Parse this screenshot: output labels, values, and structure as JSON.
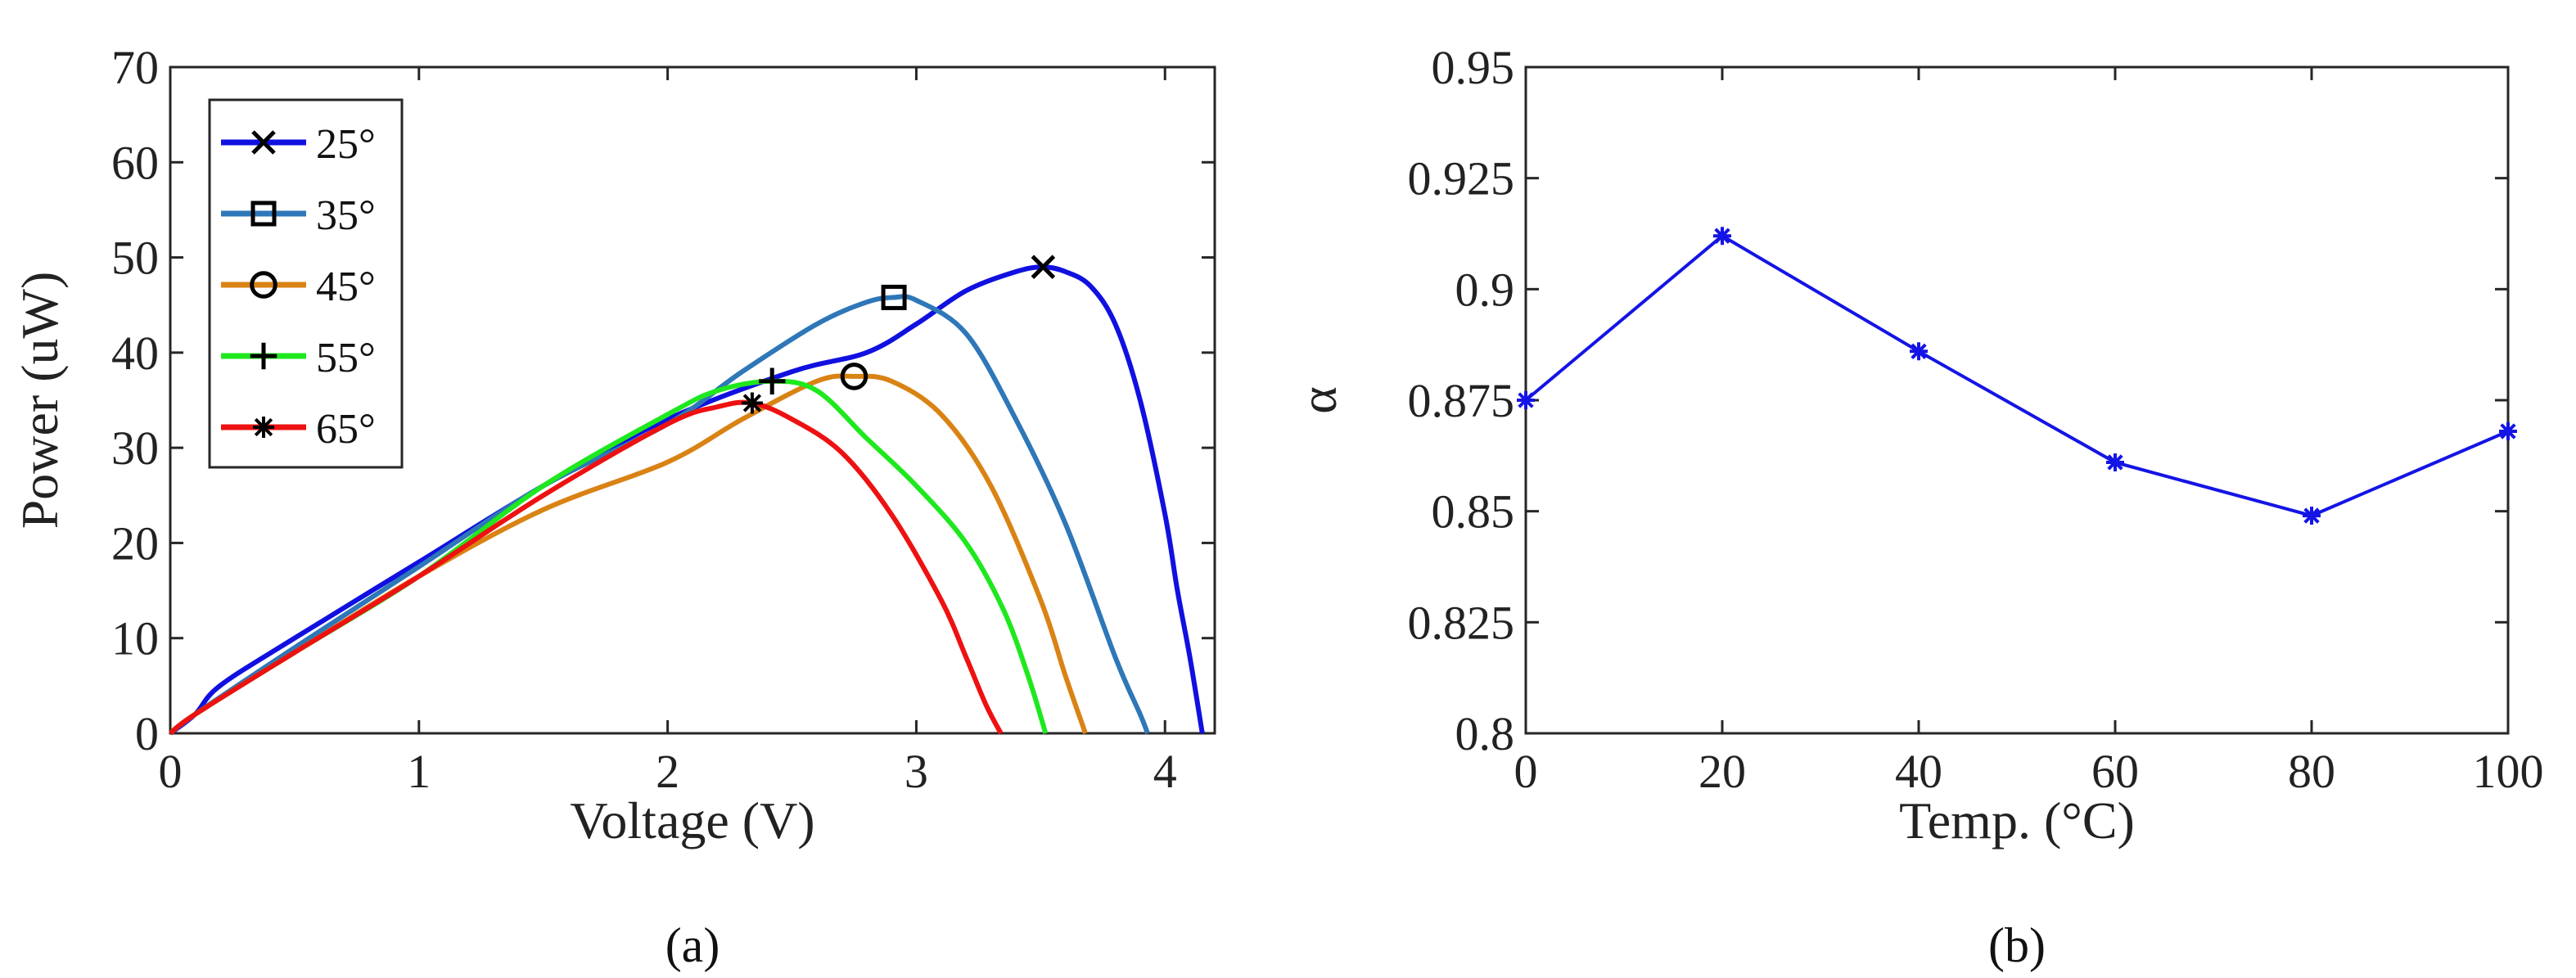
{
  "chart_data": [
    {
      "type": "line",
      "caption": "(a)",
      "xlabel": "Voltage (V)",
      "ylabel": "Power (uW)",
      "xlim": [
        0,
        4.2
      ],
      "ylim": [
        0,
        70
      ],
      "xticks": [
        0,
        1,
        2,
        3,
        4
      ],
      "yticks": [
        0,
        10,
        20,
        30,
        40,
        50,
        60,
        70
      ],
      "grid": false,
      "legend_position": "top-left",
      "series": [
        {
          "name": "25°",
          "color": "#1010e0",
          "marker": "x",
          "mpp": [
            3.51,
            49
          ],
          "x": [
            0,
            0.1,
            0.2,
            0.5,
            1.0,
            1.5,
            2.0,
            2.5,
            2.8,
            3.0,
            3.2,
            3.4,
            3.51,
            3.6,
            3.7,
            3.8,
            3.9,
            4.0,
            4.05,
            4.1,
            4.15
          ],
          "y": [
            0,
            2,
            5,
            10,
            18,
            26,
            33,
            38,
            40,
            43,
            46.5,
            48.5,
            49,
            48.5,
            47,
            43,
            35,
            23,
            15,
            8,
            0
          ]
        },
        {
          "name": "35°",
          "color": "#2e77b8",
          "marker": "square",
          "mpp": [
            2.91,
            45.8
          ],
          "x": [
            0,
            0.1,
            0.5,
            1.0,
            1.5,
            2.0,
            2.3,
            2.6,
            2.8,
            2.91,
            3.0,
            3.2,
            3.4,
            3.6,
            3.8,
            3.9,
            3.93
          ],
          "y": [
            0,
            2,
            9,
            17.5,
            26,
            32.5,
            38,
            43,
            45.3,
            45.8,
            45.5,
            42,
            33,
            22,
            8,
            2,
            0
          ]
        },
        {
          "name": "45°",
          "color": "#d98314",
          "marker": "circle",
          "mpp": [
            2.75,
            37.5
          ],
          "x": [
            0,
            0.1,
            0.5,
            1.0,
            1.5,
            2.0,
            2.3,
            2.6,
            2.75,
            2.9,
            3.1,
            3.3,
            3.5,
            3.6,
            3.68
          ],
          "y": [
            0,
            2,
            8.5,
            16.5,
            23.5,
            28.5,
            33,
            37,
            37.5,
            37,
            33.5,
            26,
            14,
            6,
            0
          ]
        },
        {
          "name": "55°",
          "color": "#1ee81e",
          "marker": "plus",
          "mpp": [
            2.42,
            37
          ],
          "x": [
            0,
            0.1,
            0.5,
            1.0,
            1.5,
            2.0,
            2.2,
            2.42,
            2.6,
            2.8,
            3.0,
            3.2,
            3.35,
            3.45,
            3.52
          ],
          "y": [
            0,
            2,
            8.5,
            16.5,
            26,
            33.5,
            36,
            37,
            36,
            31,
            26,
            20,
            13,
            6,
            0
          ]
        },
        {
          "name": "65°",
          "color": "#ee1111",
          "marker": "asterisk",
          "mpp": [
            2.34,
            34.7
          ],
          "x": [
            0,
            0.1,
            0.5,
            1.0,
            1.5,
            2.0,
            2.2,
            2.34,
            2.5,
            2.7,
            2.9,
            3.1,
            3.2,
            3.28,
            3.34
          ],
          "y": [
            0,
            2,
            8.5,
            16.5,
            25,
            32.5,
            34.3,
            34.7,
            33,
            29.5,
            23,
            14,
            8,
            3,
            0
          ]
        }
      ]
    },
    {
      "type": "line",
      "caption": "(b)",
      "xlabel": "Temp. (°C)",
      "ylabel": "α",
      "xlim": [
        0,
        100
      ],
      "ylim": [
        0.8,
        0.95
      ],
      "xticks": [
        0,
        20,
        40,
        60,
        80,
        100
      ],
      "yticks": [
        0.8,
        0.825,
        0.85,
        0.875,
        0.9,
        0.925,
        0.95
      ],
      "ytick_labels": [
        "0.8",
        "0.825",
        "0.85",
        "0.875",
        "0.9",
        "0.925",
        "0.95"
      ],
      "grid": false,
      "series": [
        {
          "name": "alpha",
          "color": "#1414e6",
          "marker": "asterisk",
          "x": [
            0,
            20,
            40,
            60,
            80,
            100
          ],
          "y": [
            0.875,
            0.912,
            0.886,
            0.861,
            0.849,
            0.868
          ]
        }
      ]
    }
  ]
}
